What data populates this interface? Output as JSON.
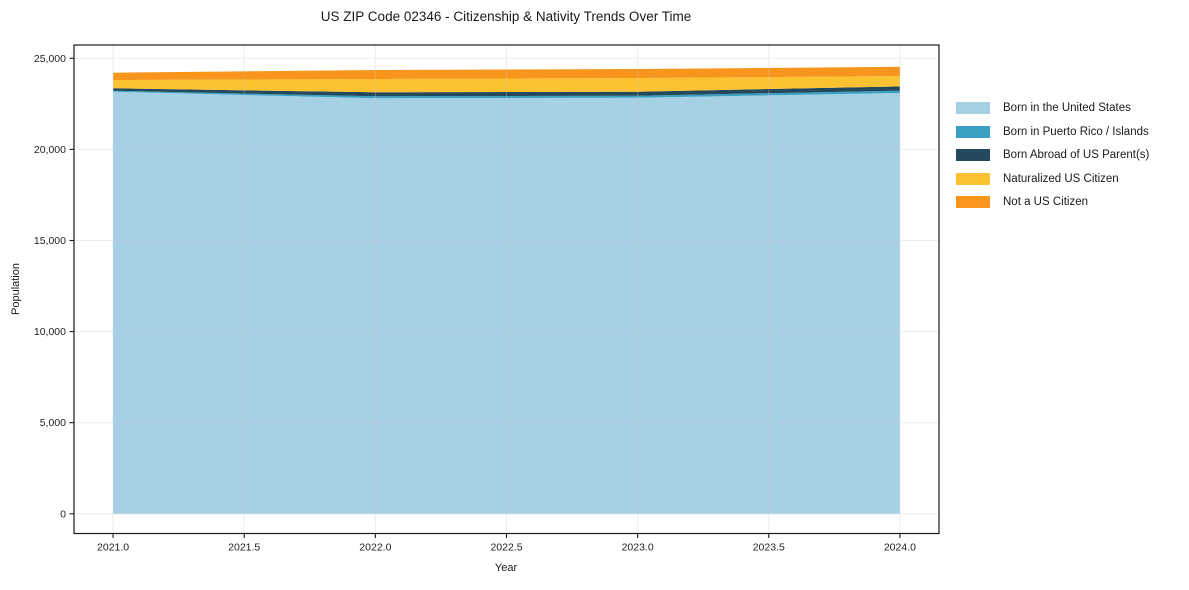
{
  "chart_data": {
    "type": "area",
    "stacked": true,
    "title": "US ZIP Code 02346 - Citizenship & Nativity Trends Over Time",
    "xlabel": "Year",
    "ylabel": "Population",
    "x": [
      2021,
      2022,
      2023,
      2024
    ],
    "series": [
      {
        "name": "Born in the United States",
        "color": "#a6d0e4",
        "values": [
          23170,
          22805,
          22840,
          23095
        ]
      },
      {
        "name": "Born in Puerto Rico / Islands",
        "color": "#3aa1c1",
        "values": [
          55,
          110,
          110,
          125
        ]
      },
      {
        "name": "Born Abroad of US Parent(s)",
        "color": "#25495c",
        "values": [
          130,
          220,
          220,
          240
        ]
      },
      {
        "name": "Naturalized US Citizen",
        "color": "#fdc231",
        "values": [
          455,
          730,
          750,
          565
        ]
      },
      {
        "name": "Not a US Citizen",
        "color": "#f8951d",
        "values": [
          400,
          495,
          495,
          510
        ]
      }
    ],
    "x_ticks": [
      2021.0,
      2021.5,
      2022.0,
      2022.5,
      2023.0,
      2023.5,
      2024.0
    ],
    "x_tick_labels": [
      "2021.0",
      "2021.5",
      "2022.0",
      "2022.5",
      "2023.0",
      "2023.5",
      "2024.0"
    ],
    "y_ticks": [
      0,
      5000,
      10000,
      15000,
      20000,
      25000
    ],
    "y_tick_labels": [
      "0",
      "5,000",
      "10,000",
      "15,000",
      "20,000",
      "25,000"
    ],
    "xlim": [
      2020.851,
      2024.149
    ],
    "ylim": [
      -1082,
      25731
    ],
    "grid": true,
    "legend_position": "right",
    "colors": {
      "axis": "#1a1a1a",
      "tick_label": "#1f1f1f",
      "gridline": "#c9ccd1",
      "background": "#ffffff"
    }
  }
}
